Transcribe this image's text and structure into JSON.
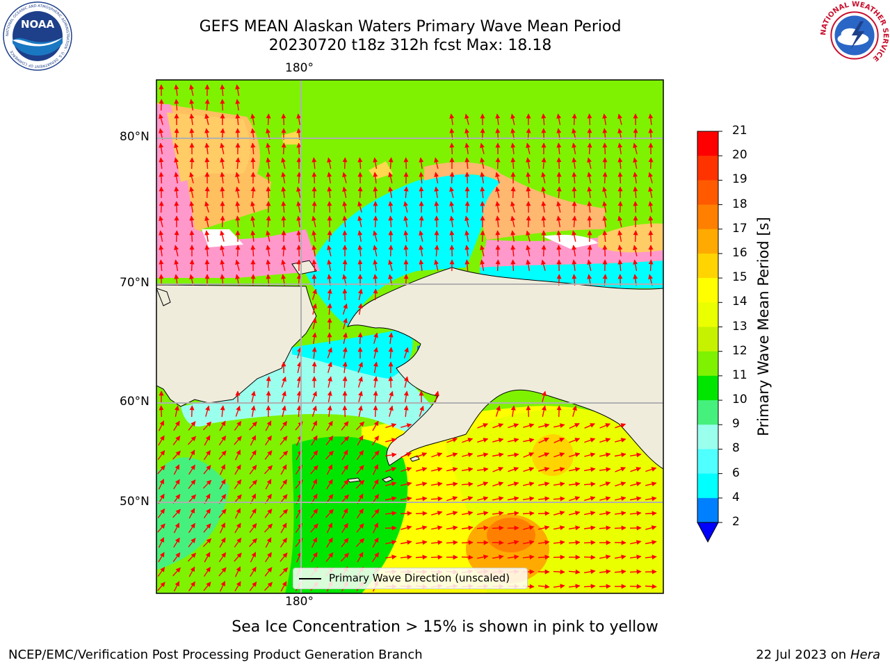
{
  "title": {
    "line1": "GEFS MEAN Alaskan Waters Primary Wave Mean Period",
    "line2": "20230720 t18z 312h fcst   Max: 18.18"
  },
  "logos": {
    "noaa": {
      "text": "NOAA",
      "ring_text": "NATIONAL OCEANIC AND ATMOSPHERIC ADMINISTRATION · U.S. DEPARTMENT OF COMMERCE"
    },
    "nws": {
      "ring_text": "NATIONAL WEATHER SERVICE"
    }
  },
  "map": {
    "lon_labels": [
      "180°",
      "180°"
    ],
    "lat_labels": [
      "80°N",
      "70°N",
      "60°N",
      "50°N"
    ],
    "gridlines": true,
    "land_color": "#efecdc",
    "legend": {
      "label": "Primary Wave Direction (unscaled)",
      "placement": "bottom-center"
    }
  },
  "colorbar": {
    "label": "Primary Wave Mean Period [s]",
    "ticks": [
      "21",
      "20",
      "19",
      "18",
      "17",
      "16",
      "15",
      "14",
      "13",
      "12",
      "11",
      "10",
      "9",
      "8",
      "6",
      "4",
      "2"
    ],
    "colors": [
      "#ff0000",
      "#ff3300",
      "#ff5a00",
      "#ff8000",
      "#ffaa00",
      "#ffd400",
      "#ffff00",
      "#eaff00",
      "#c6f200",
      "#7ef200",
      "#00e600",
      "#46f07d",
      "#9bffee",
      "#50ffff",
      "#00ffff",
      "#0080ff"
    ],
    "under_color": "#0000ff"
  },
  "note": "Sea Ice Concentration > 15% is shown in pink to yellow",
  "footer": {
    "left": "NCEP/EMC/Verification Post Processing Product Generation Branch",
    "date": "22 Jul 2023 on ",
    "machine": "Hera"
  }
}
